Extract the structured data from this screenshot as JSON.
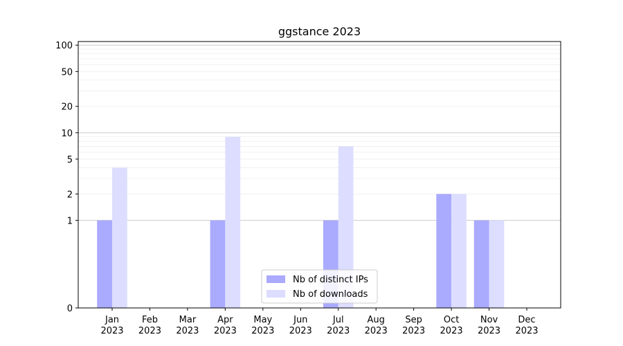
{
  "chart_data": {
    "type": "bar",
    "title": "ggstance 2023",
    "xlabel": "",
    "ylabel": "",
    "y_scale": "symlog",
    "ylim": [
      0,
      110
    ],
    "y_ticks": [
      0,
      1,
      2,
      5,
      10,
      20,
      50,
      100
    ],
    "grid": true,
    "legend_position": "bottom-center",
    "categories": [
      [
        "Jan",
        "2023"
      ],
      [
        "Feb",
        "2023"
      ],
      [
        "Mar",
        "2023"
      ],
      [
        "Apr",
        "2023"
      ],
      [
        "May",
        "2023"
      ],
      [
        "Jun",
        "2023"
      ],
      [
        "Jul",
        "2023"
      ],
      [
        "Aug",
        "2023"
      ],
      [
        "Sep",
        "2023"
      ],
      [
        "Oct",
        "2023"
      ],
      [
        "Nov",
        "2023"
      ],
      [
        "Dec",
        "2023"
      ]
    ],
    "series": [
      {
        "name": "Nb of distinct IPs",
        "color": "#aaaaff",
        "values": [
          1,
          0,
          0,
          1,
          0,
          0,
          1,
          0,
          0,
          2,
          1,
          0
        ]
      },
      {
        "name": "Nb of downloads",
        "color": "#ddddff",
        "values": [
          4,
          0,
          0,
          9,
          0,
          0,
          7,
          0,
          0,
          2,
          1,
          0
        ]
      }
    ]
  }
}
